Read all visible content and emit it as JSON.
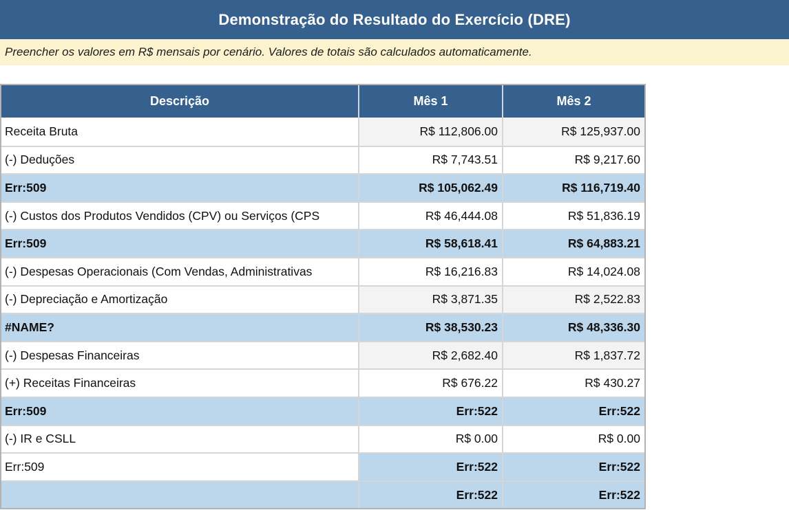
{
  "title_bar": {
    "title": "Demonstração do Resultado do Exercício (DRE)"
  },
  "subtitle_bar": {
    "text": "Preencher os valores em R$ mensais por cenário. Valores de totais são calculados automaticamente."
  },
  "colors": {
    "header_blue": "#36618F",
    "total_row_blue": "#BCD6EC",
    "input_row_gray": "#F3F3F3",
    "note_background": "#FCF3CF"
  },
  "table": {
    "columns": [
      "Descrição",
      "Mês 1",
      "Mês 2"
    ],
    "rows": [
      {
        "desc": "Receita Bruta",
        "m1": "R$ 112,806.00",
        "m2": "R$ 125,937.00",
        "desc_bg": "white",
        "val_bg": "gray",
        "desc_bold": false,
        "val_bold": false
      },
      {
        "desc": "(-) Deduções",
        "m1": "R$ 7,743.51",
        "m2": "R$ 9,217.60",
        "desc_bg": "white",
        "val_bg": "white",
        "desc_bold": false,
        "val_bold": false
      },
      {
        "desc": "Err:509",
        "m1": "R$ 105,062.49",
        "m2": "R$ 116,719.40",
        "desc_bg": "blue",
        "val_bg": "blue",
        "desc_bold": true,
        "val_bold": true
      },
      {
        "desc": "(-) Custos dos Produtos Vendidos (CPV) ou Serviços (CPS",
        "m1": "R$ 46,444.08",
        "m2": "R$ 51,836.19",
        "desc_bg": "white",
        "val_bg": "white",
        "desc_bold": false,
        "val_bold": false
      },
      {
        "desc": "Err:509",
        "m1": "R$ 58,618.41",
        "m2": "R$ 64,883.21",
        "desc_bg": "blue",
        "val_bg": "blue",
        "desc_bold": true,
        "val_bold": true
      },
      {
        "desc": "(-) Despesas Operacionais (Com Vendas, Administrativas",
        "m1": "R$ 16,216.83",
        "m2": "R$ 14,024.08",
        "desc_bg": "white",
        "val_bg": "white",
        "desc_bold": false,
        "val_bold": false
      },
      {
        "desc": "(-) Depreciação e Amortização",
        "m1": "R$ 3,871.35",
        "m2": "R$ 2,522.83",
        "desc_bg": "white",
        "val_bg": "gray",
        "desc_bold": false,
        "val_bold": false
      },
      {
        "desc": "#NAME?",
        "m1": "R$ 38,530.23",
        "m2": "R$ 48,336.30",
        "desc_bg": "blue",
        "val_bg": "blue",
        "desc_bold": true,
        "val_bold": true
      },
      {
        "desc": "(-) Despesas Financeiras",
        "m1": "R$ 2,682.40",
        "m2": "R$ 1,837.72",
        "desc_bg": "white",
        "val_bg": "gray",
        "desc_bold": false,
        "val_bold": false
      },
      {
        "desc": "(+) Receitas Financeiras",
        "m1": "R$ 676.22",
        "m2": "R$ 430.27",
        "desc_bg": "white",
        "val_bg": "white",
        "desc_bold": false,
        "val_bold": false
      },
      {
        "desc": "Err:509",
        "m1": "Err:522",
        "m2": "Err:522",
        "desc_bg": "blue",
        "val_bg": "blue",
        "desc_bold": true,
        "val_bold": true
      },
      {
        "desc": "(-) IR e CSLL",
        "m1": "R$ 0.00",
        "m2": "R$ 0.00",
        "desc_bg": "white",
        "val_bg": "white",
        "desc_bold": false,
        "val_bold": false
      },
      {
        "desc": "Err:509",
        "m1": "Err:522",
        "m2": "Err:522",
        "desc_bg": "white",
        "val_bg": "blue",
        "desc_bold": false,
        "val_bold": true
      },
      {
        "desc": "",
        "m1": "Err:522",
        "m2": "Err:522",
        "desc_bg": "blue",
        "val_bg": "blue",
        "desc_bold": false,
        "val_bold": true
      }
    ]
  }
}
